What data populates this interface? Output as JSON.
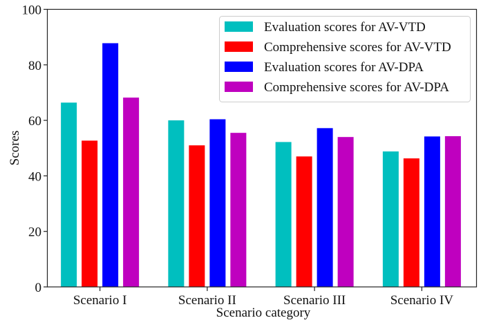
{
  "chart_data": {
    "type": "bar",
    "title": "",
    "xlabel": "Scenario category",
    "ylabel": "Scores",
    "ylim": [
      0,
      100
    ],
    "yticks": [
      0,
      20,
      40,
      60,
      80,
      100
    ],
    "grid": false,
    "legend_position": "top-right",
    "categories": [
      "Scenario I",
      "Scenario II",
      "Scenario III",
      "Scenario IV"
    ],
    "series": [
      {
        "name": "Evaluation scores for AV-VTD",
        "color": "#00bfbf",
        "values": [
          66.4,
          60.0,
          52.2,
          48.8
        ]
      },
      {
        "name": "Comprehensive scores for AV-VTD",
        "color": "#ff0000",
        "values": [
          52.7,
          51.0,
          47.0,
          46.3
        ]
      },
      {
        "name": "Evaluation scores for AV-DPA",
        "color": "#0000ff",
        "values": [
          87.8,
          60.4,
          57.2,
          54.2
        ]
      },
      {
        "name": "Comprehensive scores for AV-DPA",
        "color": "#bf00bf",
        "values": [
          68.2,
          55.5,
          54.0,
          54.3
        ]
      }
    ]
  }
}
